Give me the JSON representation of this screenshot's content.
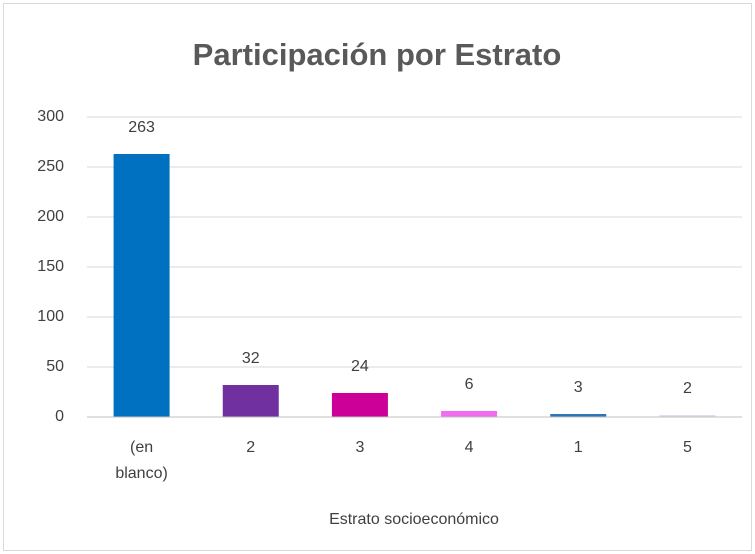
{
  "chart_data": {
    "type": "bar",
    "title": "Participación por Estrato",
    "x_label": "Estrato socioeconómico",
    "categories": [
      "(en blanco)",
      "2",
      "3",
      "4",
      "1",
      "5"
    ],
    "values": [
      263,
      32,
      24,
      6,
      3,
      2
    ],
    "colors": [
      "#0070c0",
      "#7030a0",
      "#cc0099",
      "#f06cf0",
      "#2e75b6",
      "#e2daf2"
    ],
    "ylim": [
      0,
      300
    ],
    "yticks": [
      0,
      50,
      100,
      150,
      200,
      250,
      300
    ],
    "grid": true
  }
}
